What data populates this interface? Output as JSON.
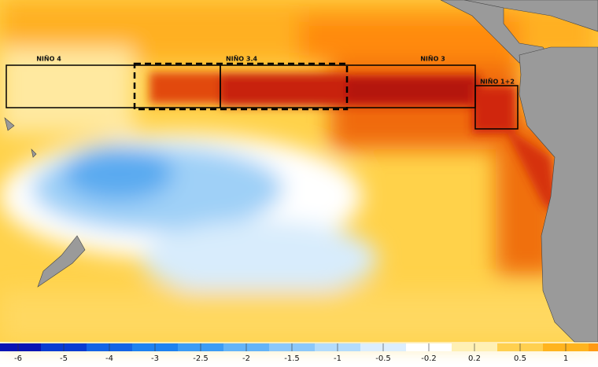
{
  "regions": [
    {
      "label": "NIÑO 4"
    },
    {
      "label": "NIÑO 3.4"
    },
    {
      "label": "NIÑO 3"
    },
    {
      "label": "NIÑO 1+2"
    }
  ],
  "colorbar": {
    "ticks": [
      "-6",
      "-5",
      "-4",
      "-3",
      "-2.5",
      "-2",
      "-1.5",
      "-1",
      "-0.5",
      "-0.2",
      "0.2",
      "0.5",
      "1"
    ],
    "colors": [
      "#0a14b4",
      "#0a3cd2",
      "#1464e6",
      "#1e82f0",
      "#3c9cf5",
      "#64b4f8",
      "#8cc8fa",
      "#b4dcfc",
      "#dceefe",
      "#ffffff",
      "#fff0b4",
      "#ffd050",
      "#ffb41e",
      "#ff9a14"
    ]
  }
}
